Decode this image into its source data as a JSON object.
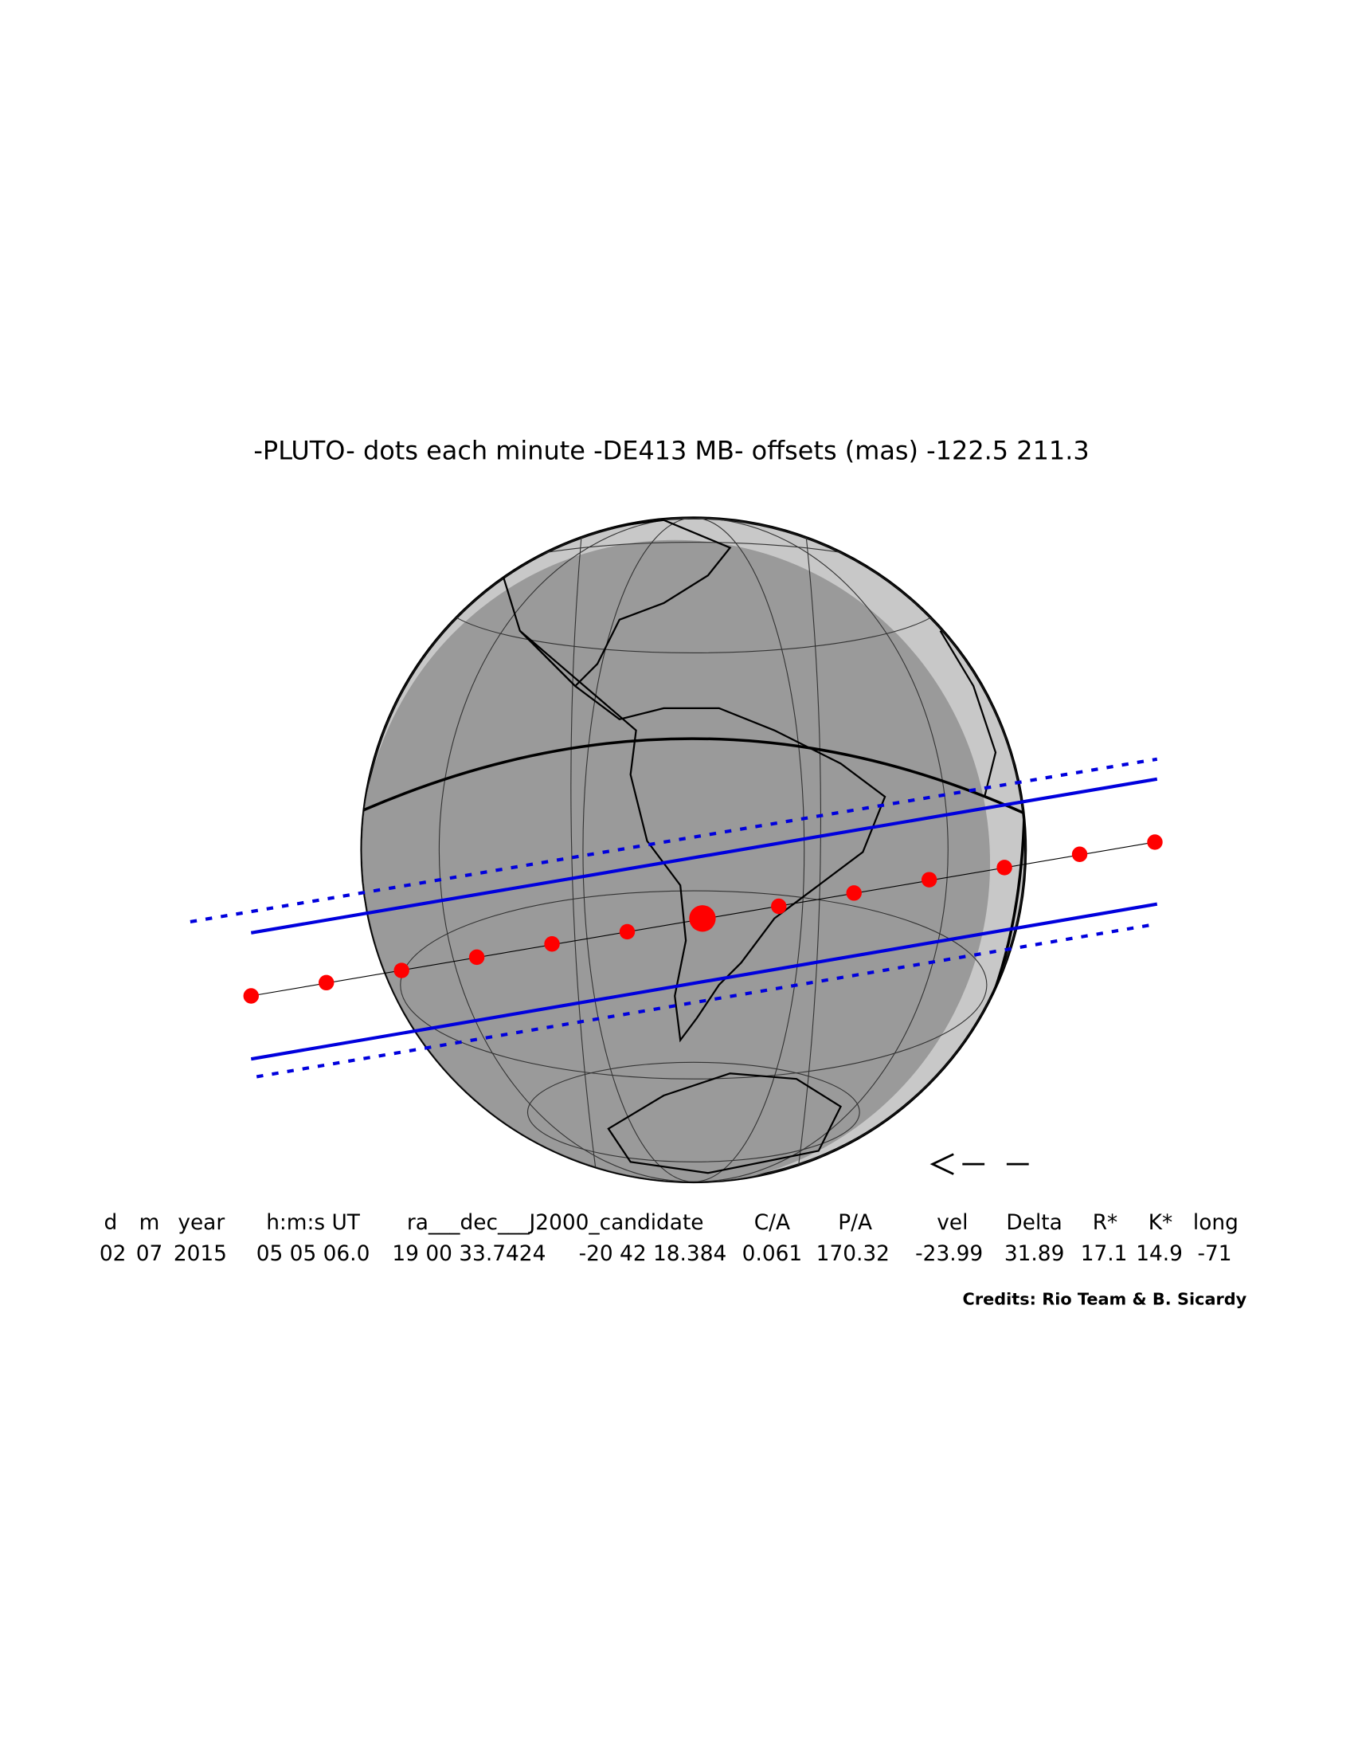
{
  "title": "-PLUTO- dots each minute -DE413 MB- offsets (mas) -122.5  211.3",
  "table": {
    "header": [
      "d",
      "m",
      "year",
      "h:m:s UT",
      "ra___dec___J2000_candidate",
      "C/A",
      "P/A",
      "vel",
      "Delta",
      "R*",
      "K*",
      "long"
    ],
    "values": [
      "02",
      "07",
      "2015",
      "05 05 06.0",
      "19 00 33.7424",
      "-20 42 18.384",
      "0.061",
      "170.32",
      "-23.99",
      "31.89",
      "17.1",
      "14.9",
      "-71"
    ]
  },
  "credits": "Credits: Rio Team & B. Sicardy"
}
